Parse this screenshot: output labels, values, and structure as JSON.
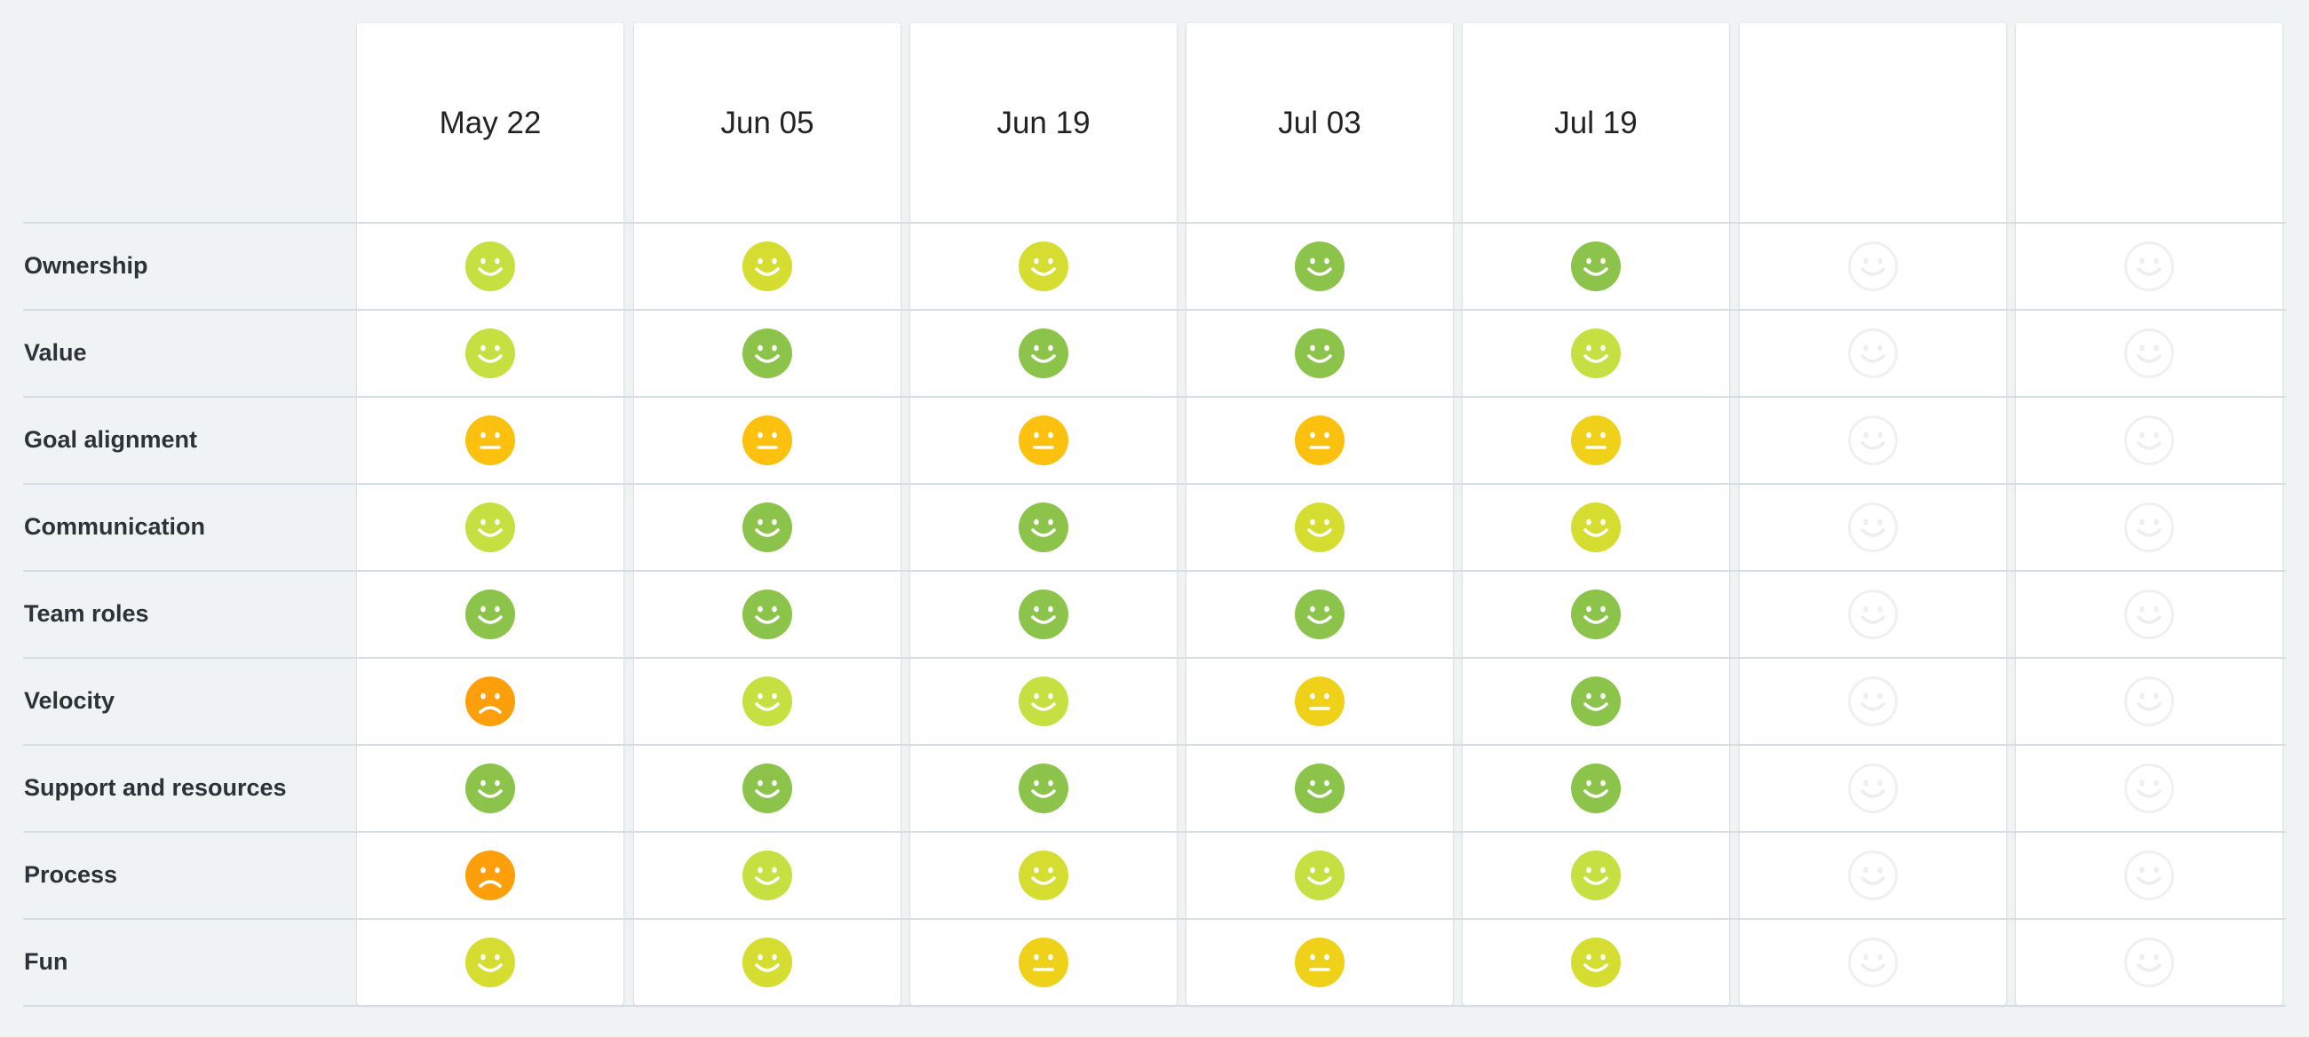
{
  "moods": {
    "good": {
      "color": "#8cc34b",
      "mouth": "smile",
      "outline": false
    },
    "ok": {
      "color": "#c6e041",
      "mouth": "smile",
      "outline": false
    },
    "fine": {
      "color": "#d6dd31",
      "mouth": "smile",
      "outline": false
    },
    "meh": {
      "color": "#f0d11a",
      "mouth": "neutral",
      "outline": false
    },
    "neutral": {
      "color": "#fcc10f",
      "mouth": "neutral",
      "outline": false
    },
    "bad": {
      "color": "#fd9f0b",
      "mouth": "frown",
      "outline": false
    },
    "empty": {
      "color": "#eef0f1",
      "mouth": "smile",
      "outline": true
    }
  },
  "columns": [
    {
      "date": "May 22"
    },
    {
      "date": "Jun 05"
    },
    {
      "date": "Jun 19"
    },
    {
      "date": "Jul 03"
    },
    {
      "date": "Jul 19"
    },
    {
      "date": ""
    },
    {
      "date": ""
    }
  ],
  "rows": [
    {
      "label": "Ownership",
      "moods": [
        "ok",
        "fine",
        "fine",
        "good",
        "good",
        "empty",
        "empty"
      ]
    },
    {
      "label": "Value",
      "moods": [
        "ok",
        "good",
        "good",
        "good",
        "ok",
        "empty",
        "empty"
      ]
    },
    {
      "label": "Goal alignment",
      "moods": [
        "neutral",
        "neutral",
        "neutral",
        "neutral",
        "meh",
        "empty",
        "empty"
      ]
    },
    {
      "label": "Communication",
      "moods": [
        "ok",
        "good",
        "good",
        "fine",
        "fine",
        "empty",
        "empty"
      ]
    },
    {
      "label": "Team roles",
      "moods": [
        "good",
        "good",
        "good",
        "good",
        "good",
        "empty",
        "empty"
      ]
    },
    {
      "label": "Velocity",
      "moods": [
        "bad",
        "ok",
        "ok",
        "meh",
        "good",
        "empty",
        "empty"
      ]
    },
    {
      "label": "Support and resources",
      "moods": [
        "good",
        "good",
        "good",
        "good",
        "good",
        "empty",
        "empty"
      ]
    },
    {
      "label": "Process",
      "moods": [
        "bad",
        "ok",
        "fine",
        "ok",
        "ok",
        "empty",
        "empty"
      ]
    },
    {
      "label": "Fun",
      "moods": [
        "fine",
        "fine",
        "meh",
        "meh",
        "fine",
        "empty",
        "empty"
      ]
    }
  ]
}
